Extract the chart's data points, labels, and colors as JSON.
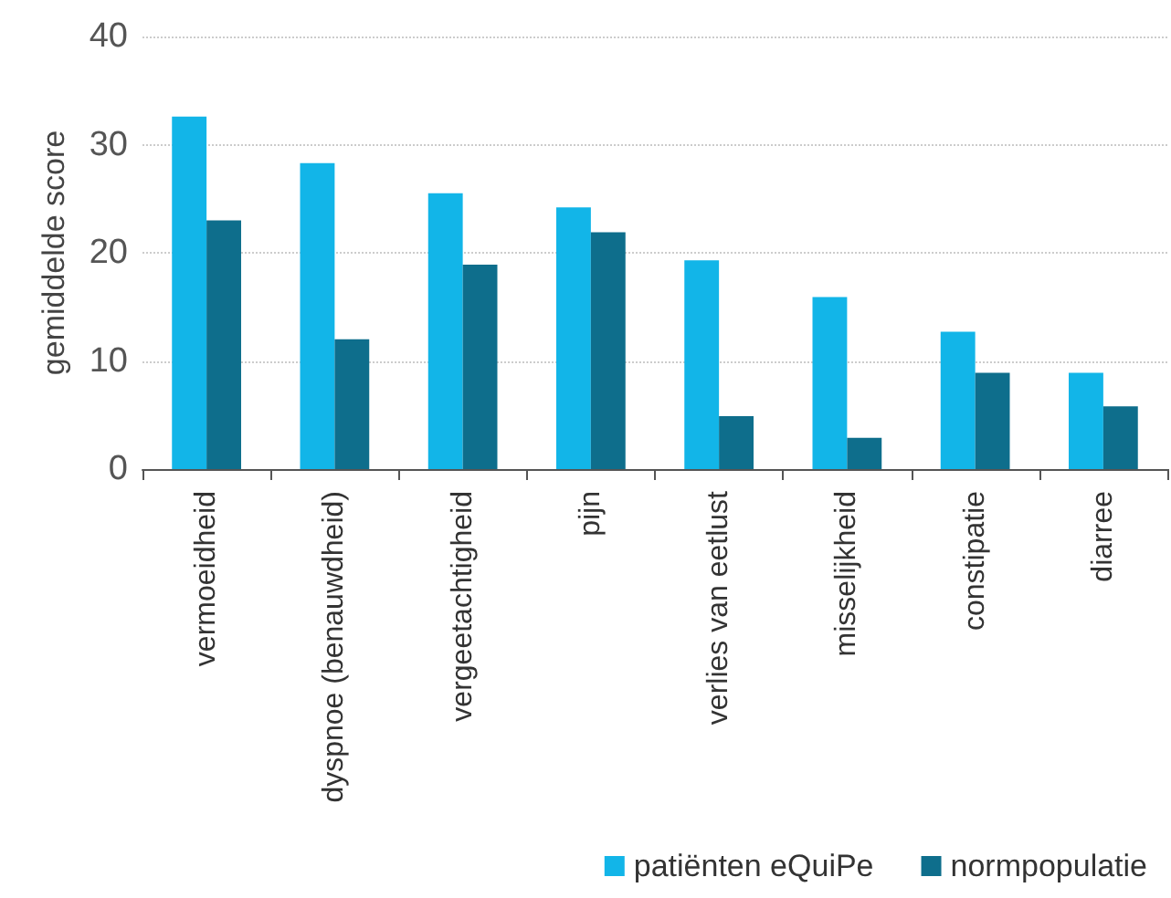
{
  "chart_data": {
    "type": "bar",
    "ylabel": "gemiddelde score",
    "categories": [
      "vermoeidheid",
      "dyspnoe (benauwdheid)",
      "vergeetachtigheid",
      "pijn",
      "verlies van eetlust",
      "misselijkheid",
      "constipatie",
      "diarree"
    ],
    "series": [
      {
        "name": "patiënten eQuiPe",
        "color": "#12b5e8",
        "values": [
          32.6,
          28.3,
          25.5,
          24.2,
          19.3,
          15.9,
          12.7,
          8.9
        ]
      },
      {
        "name": "normpopulatie",
        "color": "#0e6e8c",
        "values": [
          23.0,
          12.0,
          18.9,
          21.9,
          4.9,
          2.9,
          8.9,
          5.8
        ]
      }
    ],
    "ylim": [
      0,
      40
    ],
    "yticks": [
      0,
      10,
      20,
      30,
      40
    ],
    "grid": "y",
    "legend": "bottom right"
  }
}
